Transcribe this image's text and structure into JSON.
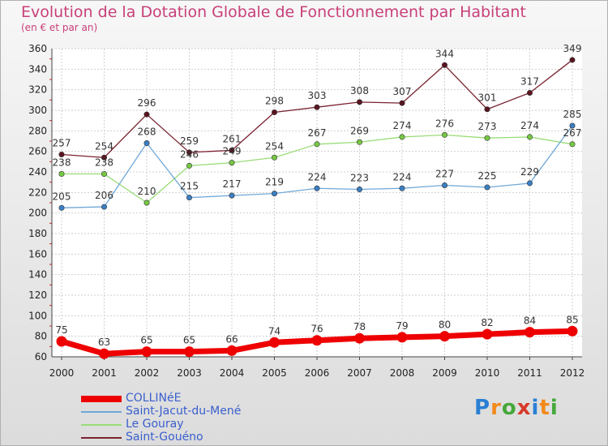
{
  "title": "Evolution de la Dotation Globale de Fonctionnement par Habitant",
  "subtitle": "(en € et par an)",
  "logo": {
    "letters": [
      "P",
      "r",
      "o",
      "x",
      "i",
      "t",
      "i"
    ],
    "colors": [
      "#2a7fd4",
      "#f28a1a",
      "#44a83a",
      "#d63a2a",
      "#2a7fd4",
      "#f28a1a",
      "#44a83a"
    ]
  },
  "chart_data": {
    "type": "line",
    "title": "Evolution de la Dotation Globale de Fonctionnement par Habitant",
    "subtitle": "(en € et par an)",
    "x": [
      "2000",
      "2001",
      "2002",
      "2003",
      "2004",
      "2005",
      "2006",
      "2007",
      "2008",
      "2009",
      "2010",
      "2011",
      "2012"
    ],
    "ylim": [
      60,
      360
    ],
    "yticks": [
      60,
      80,
      100,
      120,
      140,
      160,
      180,
      200,
      220,
      240,
      260,
      280,
      300,
      320,
      340,
      360
    ],
    "grid": true,
    "legend_position": "bottom-left",
    "series": [
      {
        "name": "Saint-Gouéno",
        "color": "#7a2230",
        "marker": "#5a1520",
        "values": [
          257,
          254,
          296,
          259,
          261,
          298,
          303,
          308,
          307,
          344,
          301,
          317,
          349
        ]
      },
      {
        "name": "Le Gouray",
        "color": "#99dd77",
        "marker": "#77c844",
        "values": [
          238,
          238,
          210,
          246,
          249,
          254,
          267,
          269,
          274,
          276,
          273,
          274,
          267
        ]
      },
      {
        "name": "Saint-Jacut-du-Mené",
        "color": "#6fa8d8",
        "marker": "#3b7fc4",
        "values": [
          205,
          206,
          268,
          215,
          217,
          219,
          224,
          223,
          224,
          227,
          225,
          229,
          285
        ]
      },
      {
        "name": "COLLINéE",
        "color": "#ee0000",
        "marker": "#ee0000",
        "values": [
          75,
          63,
          65,
          65,
          66,
          74,
          76,
          78,
          79,
          80,
          82,
          84,
          85
        ]
      }
    ],
    "legend_order": [
      "COLLINéE",
      "Saint-Jacut-du-Mené",
      "Le Gouray",
      "Saint-Gouéno"
    ]
  }
}
